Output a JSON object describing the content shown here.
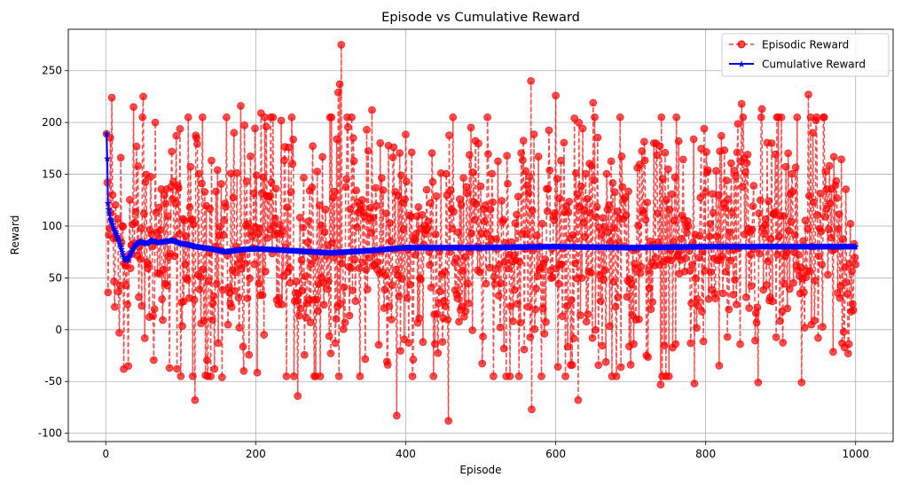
{
  "chart_data": {
    "type": "line",
    "title": "Episode vs Cumulative Reward",
    "xlabel": "Episode",
    "ylabel": "Reward",
    "xlim": [
      -50,
      1050
    ],
    "ylim": [
      -108,
      290
    ],
    "xticks": [
      0,
      200,
      400,
      600,
      800,
      1000
    ],
    "yticks": [
      -100,
      -50,
      0,
      50,
      100,
      150,
      200,
      250
    ],
    "grid": true,
    "legend_position": "top-right",
    "series": [
      {
        "name": "Episodic Reward",
        "color": "#ff0000",
        "style": "dashed",
        "marker": "circle",
        "x_range": [
          1,
          1000
        ],
        "summary": {
          "mean": 80,
          "min": -88,
          "max": 275
        },
        "notable_points": [
          [
            1,
            189
          ],
          [
            2,
            142
          ],
          [
            3,
            36
          ],
          [
            5,
            98
          ],
          [
            8,
            224
          ],
          [
            12,
            22
          ],
          [
            18,
            -3
          ],
          [
            24,
            -38
          ],
          [
            37,
            215
          ],
          [
            50,
            225
          ],
          [
            66,
            200
          ],
          [
            85,
            -37
          ],
          [
            119,
            -68
          ],
          [
            155,
            -46
          ],
          [
            180,
            216
          ],
          [
            207,
            209
          ],
          [
            220,
            205
          ],
          [
            256,
            -64
          ],
          [
            310,
            229
          ],
          [
            312,
            237
          ],
          [
            314,
            275
          ],
          [
            330,
            185
          ],
          [
            348,
            193
          ],
          [
            355,
            212
          ],
          [
            388,
            -83
          ],
          [
            457,
            -88
          ],
          [
            567,
            240
          ],
          [
            568,
            -77
          ],
          [
            600,
            226
          ],
          [
            625,
            204
          ],
          [
            630,
            -68
          ],
          [
            650,
            219
          ],
          [
            740,
            -53
          ],
          [
            785,
            -52
          ],
          [
            848,
            218
          ],
          [
            870,
            -51
          ],
          [
            875,
            213
          ],
          [
            928,
            -51
          ],
          [
            937,
            227
          ],
          [
            958,
            205
          ],
          [
            990,
            -23
          ],
          [
            1000,
            63
          ]
        ]
      },
      {
        "name": "Cumulative Reward",
        "color": "#0000ff",
        "style": "solid",
        "marker": "star",
        "points": [
          [
            1,
            189
          ],
          [
            2,
            165
          ],
          [
            3,
            122
          ],
          [
            4,
            116
          ],
          [
            5,
            112
          ],
          [
            6,
            107
          ],
          [
            8,
            104
          ],
          [
            10,
            99
          ],
          [
            12,
            95
          ],
          [
            14,
            92
          ],
          [
            16,
            88
          ],
          [
            18,
            85
          ],
          [
            20,
            80
          ],
          [
            22,
            75
          ],
          [
            25,
            68
          ],
          [
            28,
            67
          ],
          [
            31,
            70
          ],
          [
            35,
            76
          ],
          [
            40,
            82
          ],
          [
            45,
            85
          ],
          [
            50,
            84
          ],
          [
            55,
            83
          ],
          [
            60,
            86
          ],
          [
            70,
            84
          ],
          [
            80,
            85
          ],
          [
            90,
            86
          ],
          [
            100,
            83
          ],
          [
            110,
            82
          ],
          [
            120,
            80
          ],
          [
            140,
            78
          ],
          [
            160,
            75
          ],
          [
            180,
            77
          ],
          [
            200,
            78
          ],
          [
            250,
            76
          ],
          [
            300,
            74
          ],
          [
            350,
            76
          ],
          [
            400,
            79
          ],
          [
            500,
            79
          ],
          [
            600,
            80
          ],
          [
            700,
            79
          ],
          [
            800,
            80
          ],
          [
            900,
            80
          ],
          [
            1000,
            80
          ]
        ]
      }
    ]
  }
}
